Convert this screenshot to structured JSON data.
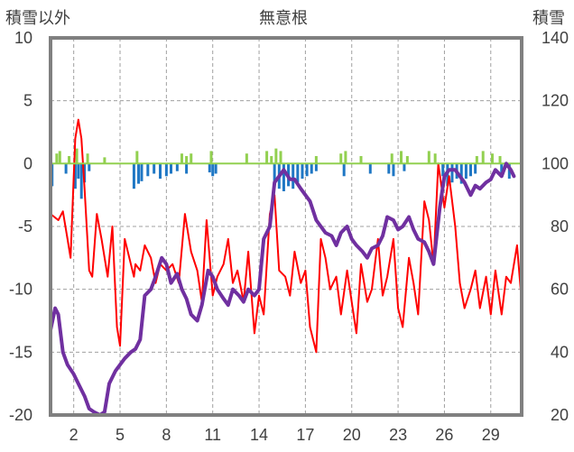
{
  "header": {
    "left_label": "積雪以外",
    "title": "無意根",
    "right_label": "積雪"
  },
  "colors": {
    "temperature_max": "#ff0000",
    "precipitation": "#1f77c4",
    "snowfall": "#92d050",
    "zero_line": "#92d050",
    "snow_depth": "#7030a0",
    "frame": "#808080",
    "grid": "#a0a0a0"
  },
  "chart_data": {
    "type": "line",
    "title": "無意根",
    "xlabel": "",
    "ylabel": "積雪以外",
    "y2label": "積雪",
    "xlim": [
      0.5,
      31.0
    ],
    "ylim": [
      -20,
      10
    ],
    "y2lim": [
      20,
      140
    ],
    "xticks": [
      2,
      5,
      8,
      11,
      14,
      17,
      20,
      23,
      26,
      29
    ],
    "yticks": [
      10,
      5,
      0,
      -5,
      -10,
      -15,
      -20
    ],
    "y2ticks": [
      140,
      120,
      100,
      80,
      60,
      40,
      20
    ],
    "grid": true,
    "series": [
      {
        "axis": "left",
        "kind": "line",
        "color": "#ff0000",
        "x": [
          0.5,
          1.0,
          1.3,
          1.6,
          1.8,
          2.0,
          2.1,
          2.3,
          2.5,
          2.7,
          3.0,
          3.2,
          3.5,
          3.8,
          4.0,
          4.2,
          4.5,
          4.8,
          5.0,
          5.3,
          5.6,
          5.9,
          6.0,
          6.3,
          6.6,
          7.0,
          7.3,
          7.6,
          8.0,
          8.4,
          8.8,
          9.2,
          9.6,
          10.0,
          10.3,
          10.6,
          11.0,
          11.3,
          11.7,
          12.0,
          12.3,
          12.6,
          13.0,
          13.3,
          13.7,
          14.0,
          14.3,
          14.7,
          15.0,
          15.3,
          15.7,
          16.0,
          16.3,
          16.7,
          17.0,
          17.3,
          17.7,
          18.0,
          18.3,
          18.6,
          19.0,
          19.3,
          19.7,
          20.0,
          20.3,
          20.6,
          21.0,
          21.3,
          21.7,
          22.0,
          22.3,
          22.7,
          23.0,
          23.3,
          23.7,
          24.0,
          24.3,
          24.7,
          25.0,
          25.3,
          25.6,
          26.0,
          26.3,
          26.7,
          27.0,
          27.3,
          27.7,
          28.0,
          28.3,
          28.7,
          29.0,
          29.3,
          29.7,
          30.0,
          30.3,
          30.7,
          31.0
        ],
        "values": [
          -4,
          -4.5,
          -3.8,
          -6,
          -7.5,
          -1,
          2,
          3.5,
          2,
          -2,
          -8.5,
          -9,
          -4,
          -6,
          -7.5,
          -9,
          -5,
          -13,
          -14.5,
          -6,
          -7.5,
          -9,
          -8,
          -8.5,
          -6.5,
          -7.5,
          -9.5,
          -8,
          -8.5,
          -8,
          -9.5,
          -4,
          -7,
          -8.5,
          -11,
          -4.5,
          -10.5,
          -9,
          -8,
          -6,
          -9.5,
          -8.5,
          -11,
          -7,
          -13.5,
          -10.5,
          -12,
          -4,
          -2.5,
          -8.5,
          -9,
          -10.5,
          -7,
          -9.5,
          -8.5,
          -13,
          -15,
          -6,
          -7.5,
          -10,
          -9,
          -12,
          -8.5,
          -11,
          -13.5,
          -8,
          -11,
          -10,
          -6,
          -10.5,
          -9,
          -6,
          -11.5,
          -13,
          -7.5,
          -9.5,
          -12,
          -3,
          -4.5,
          -8,
          0,
          -3.5,
          -1,
          -5,
          -9.5,
          -11.5,
          -10,
          -8.5,
          -11.5,
          -9,
          -12,
          -8.5,
          -12,
          -9,
          -9.5,
          -6.5,
          -11
        ]
      },
      {
        "axis": "left",
        "kind": "bar",
        "color": "#1f77c4",
        "x": [
          0.6,
          1.5,
          2.1,
          2.3,
          2.5,
          2.7,
          3.0,
          5.9,
          6.2,
          6.4,
          6.8,
          7.2,
          7.6,
          8.0,
          8.3,
          8.7,
          9.3,
          10.8,
          11.0,
          11.2,
          15.0,
          15.3,
          15.6,
          15.9,
          16.2,
          16.5,
          16.8,
          17.1,
          17.4,
          17.7,
          19.5,
          21.2,
          22.4,
          22.7,
          23.4,
          25.9,
          26.2,
          26.5,
          26.8,
          27.1,
          27.4,
          27.7,
          28.0,
          29.7,
          30.2
        ],
        "values": [
          -1.8,
          -0.8,
          -2,
          -1.2,
          -2.8,
          -1.5,
          -0.6,
          -2,
          -1.6,
          -1.4,
          -1,
          -0.8,
          -1.2,
          -1,
          -0.8,
          -0.6,
          -0.8,
          -0.7,
          -1,
          -0.8,
          -1.5,
          -2,
          -2.2,
          -1.8,
          -2,
          -1.5,
          -1.2,
          -1,
          -0.8,
          -0.6,
          -1,
          -0.8,
          -0.8,
          -1,
          -0.6,
          -1,
          -1.8,
          -1.5,
          -1.2,
          -1.6,
          -1.2,
          -1,
          -0.8,
          -1,
          -1.2
        ]
      },
      {
        "axis": "left",
        "kind": "bar",
        "color": "#92d050",
        "x": [
          0.9,
          1.1,
          1.7,
          2.2,
          2.9,
          4.0,
          6.1,
          9.0,
          9.3,
          9.6,
          10.9,
          13.2,
          14.5,
          14.8,
          15.1,
          15.4,
          17.7,
          19.3,
          19.6,
          20.6,
          22.6,
          23.2,
          23.6,
          25.0,
          25.4,
          28.1,
          28.5,
          29.1,
          29.6
        ],
        "values": [
          0.8,
          1,
          0.6,
          1.2,
          0.8,
          0.5,
          1,
          0.8,
          0.6,
          0.8,
          1,
          0.8,
          1,
          0.6,
          1.2,
          1,
          0.6,
          0.8,
          1,
          0.6,
          0.8,
          1,
          0.6,
          1,
          0.8,
          0.6,
          1,
          0.8,
          0.6
        ]
      },
      {
        "axis": "left",
        "kind": "line",
        "color": "#92d050",
        "x": [
          0.5,
          31.0
        ],
        "values": [
          0,
          0
        ]
      },
      {
        "axis": "right",
        "kind": "line",
        "color": "#7030a0",
        "x": [
          0.5,
          0.8,
          1.0,
          1.3,
          1.6,
          2.0,
          2.3,
          2.7,
          3.0,
          3.3,
          3.7,
          4.0,
          4.3,
          4.7,
          5.0,
          5.3,
          5.7,
          6.0,
          6.3,
          6.6,
          7.0,
          7.3,
          7.7,
          8.0,
          8.3,
          8.7,
          9.0,
          9.3,
          9.6,
          10.0,
          10.3,
          10.7,
          11.0,
          11.3,
          11.7,
          12.0,
          12.3,
          12.7,
          13.0,
          13.3,
          13.7,
          14.0,
          14.3,
          14.7,
          15.0,
          15.3,
          15.6,
          16.0,
          16.3,
          16.7,
          17.0,
          17.3,
          17.7,
          18.0,
          18.3,
          18.7,
          19.0,
          19.3,
          19.7,
          20.0,
          20.3,
          20.7,
          21.0,
          21.3,
          21.7,
          22.0,
          22.3,
          22.7,
          23.0,
          23.3,
          23.7,
          24.0,
          24.3,
          24.7,
          25.0,
          25.3,
          25.7,
          26.0,
          26.3,
          26.7,
          27.0,
          27.3,
          27.7,
          28.0,
          28.3,
          28.7,
          29.0,
          29.3,
          29.7,
          30.0,
          30.3,
          30.5
        ],
        "values": [
          47,
          54,
          52,
          40,
          36,
          33,
          30,
          26,
          22,
          21,
          20,
          21,
          30,
          34,
          36,
          38,
          40,
          41,
          44,
          58,
          60,
          64,
          70,
          68,
          62,
          65,
          60,
          57,
          52,
          50,
          55,
          66,
          64,
          60,
          57,
          55,
          60,
          58,
          56,
          60,
          58,
          60,
          76,
          80,
          94,
          96,
          98,
          95,
          95,
          92,
          90,
          88,
          82,
          80,
          78,
          77,
          74,
          78,
          80,
          76,
          74,
          72,
          70,
          73,
          74,
          77,
          83,
          82,
          79,
          80,
          83,
          79,
          76,
          75,
          72,
          68,
          86,
          96,
          98,
          98,
          96,
          94,
          90,
          93,
          92,
          94,
          95,
          98,
          96,
          100,
          98,
          96
        ]
      }
    ]
  }
}
